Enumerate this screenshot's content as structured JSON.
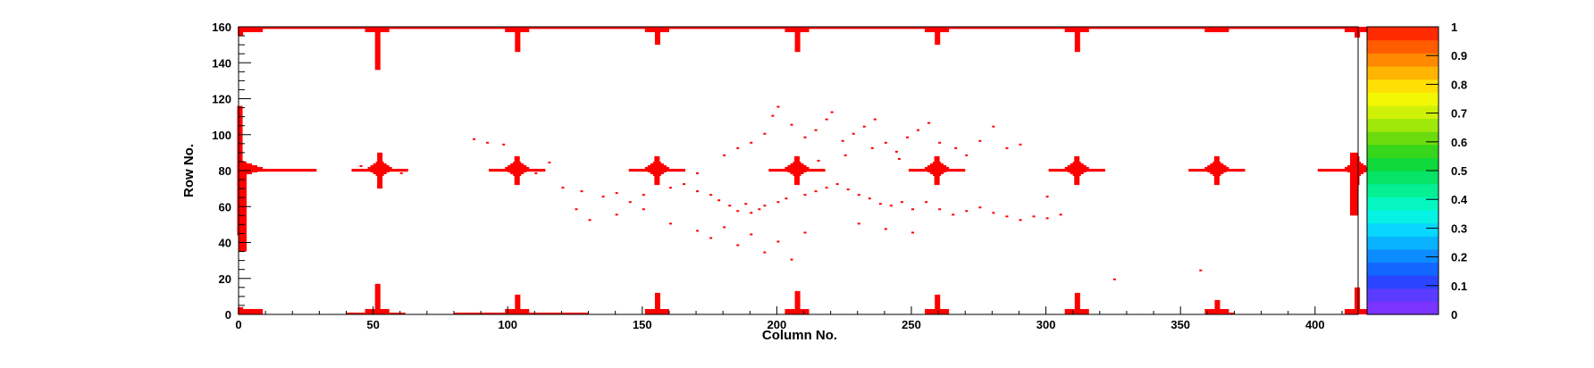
{
  "chart_data": {
    "type": "heatmap",
    "title": "",
    "xlabel": "Column No.",
    "ylabel": "Row No.",
    "xlim": [
      0,
      416
    ],
    "ylim": [
      0,
      160
    ],
    "x_ticks": [
      0,
      50,
      100,
      150,
      200,
      250,
      300,
      350,
      400
    ],
    "y_ticks": [
      0,
      20,
      40,
      60,
      80,
      100,
      120,
      140,
      160
    ],
    "grid": false,
    "colorbar": {
      "range": [
        0,
        1
      ],
      "tick_labels": [
        "0",
        "0.1",
        "0.2",
        "0.3",
        "0.4",
        "0.5",
        "0.6",
        "0.7",
        "0.8",
        "0.9",
        "1"
      ],
      "palette": [
        "#7b33ff",
        "#5b3bff",
        "#2a45ff",
        "#1366ff",
        "#0d8cff",
        "#0ab3ff",
        "#08d8ff",
        "#06f2e5",
        "#05f7bf",
        "#05ef93",
        "#05e466",
        "#0fd83a",
        "#35d61b",
        "#6ddc0f",
        "#a0e70a",
        "#cff107",
        "#f4f704",
        "#ffdf03",
        "#ffb502",
        "#ff8a01",
        "#ff5c00",
        "#ff2a00"
      ]
    },
    "value_color": "#ff0000",
    "hot_cross_centers": [
      {
        "col": 0,
        "row": 80
      },
      {
        "col": 52,
        "row": 80
      },
      {
        "col": 103,
        "row": 80
      },
      {
        "col": 155,
        "row": 80
      },
      {
        "col": 207,
        "row": 80
      },
      {
        "col": 259,
        "row": 80
      },
      {
        "col": 311,
        "row": 80
      },
      {
        "col": 363,
        "row": 80
      },
      {
        "col": 415,
        "row": 80
      }
    ],
    "hot_spikes_top": [
      {
        "col": 0,
        "row_from": 155,
        "row_to": 160
      },
      {
        "col": 51,
        "row_from": 136,
        "row_to": 160
      },
      {
        "col": 103,
        "row_from": 146,
        "row_to": 160
      },
      {
        "col": 155,
        "row_from": 150,
        "row_to": 160
      },
      {
        "col": 207,
        "row_from": 146,
        "row_to": 160
      },
      {
        "col": 259,
        "row_from": 150,
        "row_to": 160
      },
      {
        "col": 311,
        "row_from": 146,
        "row_to": 160
      },
      {
        "col": 363,
        "row_from": 157,
        "row_to": 160
      },
      {
        "col": 415,
        "row_from": 154,
        "row_to": 160
      }
    ],
    "hot_spikes_bottom": [
      {
        "col": 0,
        "row_from": 0,
        "row_to": 4
      },
      {
        "col": 51,
        "row_from": 0,
        "row_to": 17
      },
      {
        "col": 103,
        "row_from": 0,
        "row_to": 11
      },
      {
        "col": 155,
        "row_from": 0,
        "row_to": 12
      },
      {
        "col": 207,
        "row_from": 0,
        "row_to": 13
      },
      {
        "col": 259,
        "row_from": 0,
        "row_to": 11
      },
      {
        "col": 311,
        "row_from": 0,
        "row_to": 12
      },
      {
        "col": 363,
        "row_from": 0,
        "row_to": 8
      },
      {
        "col": 415,
        "row_from": 0,
        "row_to": 15
      }
    ],
    "scattered_hot_pixels": [
      [
        87,
        97
      ],
      [
        92,
        95
      ],
      [
        127,
        68
      ],
      [
        135,
        65
      ],
      [
        140,
        67
      ],
      [
        145,
        62
      ],
      [
        150,
        66
      ],
      [
        160,
        70
      ],
      [
        165,
        72
      ],
      [
        170,
        68
      ],
      [
        175,
        66
      ],
      [
        178,
        63
      ],
      [
        182,
        60
      ],
      [
        185,
        57
      ],
      [
        188,
        61
      ],
      [
        190,
        56
      ],
      [
        193,
        58
      ],
      [
        195,
        60
      ],
      [
        200,
        62
      ],
      [
        203,
        64
      ],
      [
        210,
        66
      ],
      [
        214,
        68
      ],
      [
        218,
        70
      ],
      [
        222,
        72
      ],
      [
        226,
        69
      ],
      [
        230,
        66
      ],
      [
        234,
        64
      ],
      [
        238,
        61
      ],
      [
        242,
        60
      ],
      [
        246,
        62
      ],
      [
        250,
        58
      ],
      [
        255,
        62
      ],
      [
        260,
        58
      ],
      [
        265,
        55
      ],
      [
        270,
        57
      ],
      [
        275,
        59
      ],
      [
        280,
        56
      ],
      [
        285,
        54
      ],
      [
        290,
        52
      ],
      [
        295,
        54
      ],
      [
        300,
        53
      ],
      [
        305,
        55
      ],
      [
        180,
        88
      ],
      [
        185,
        92
      ],
      [
        190,
        95
      ],
      [
        195,
        100
      ],
      [
        198,
        110
      ],
      [
        200,
        115
      ],
      [
        205,
        105
      ],
      [
        210,
        98
      ],
      [
        214,
        102
      ],
      [
        218,
        108
      ],
      [
        220,
        112
      ],
      [
        224,
        96
      ],
      [
        228,
        100
      ],
      [
        232,
        104
      ],
      [
        236,
        108
      ],
      [
        240,
        95
      ],
      [
        244,
        90
      ],
      [
        248,
        98
      ],
      [
        252,
        102
      ],
      [
        256,
        106
      ],
      [
        260,
        95
      ],
      [
        266,
        92
      ],
      [
        270,
        88
      ],
      [
        275,
        96
      ],
      [
        280,
        104
      ],
      [
        285,
        92
      ],
      [
        290,
        94
      ],
      [
        120,
        70
      ],
      [
        125,
        58
      ],
      [
        130,
        52
      ],
      [
        140,
        55
      ],
      [
        150,
        58
      ],
      [
        160,
        50
      ],
      [
        170,
        46
      ],
      [
        175,
        42
      ],
      [
        180,
        48
      ],
      [
        185,
        38
      ],
      [
        190,
        44
      ],
      [
        195,
        34
      ],
      [
        200,
        40
      ],
      [
        205,
        30
      ],
      [
        210,
        45
      ],
      [
        230,
        50
      ],
      [
        240,
        47
      ],
      [
        250,
        45
      ],
      [
        325,
        19
      ],
      [
        357,
        24
      ],
      [
        98,
        94
      ],
      [
        170,
        78
      ],
      [
        300,
        65
      ],
      [
        60,
        78
      ],
      [
        45,
        82
      ],
      [
        110,
        78
      ],
      [
        115,
        84
      ],
      [
        215,
        85
      ],
      [
        225,
        88
      ],
      [
        235,
        92
      ],
      [
        245,
        86
      ]
    ]
  }
}
